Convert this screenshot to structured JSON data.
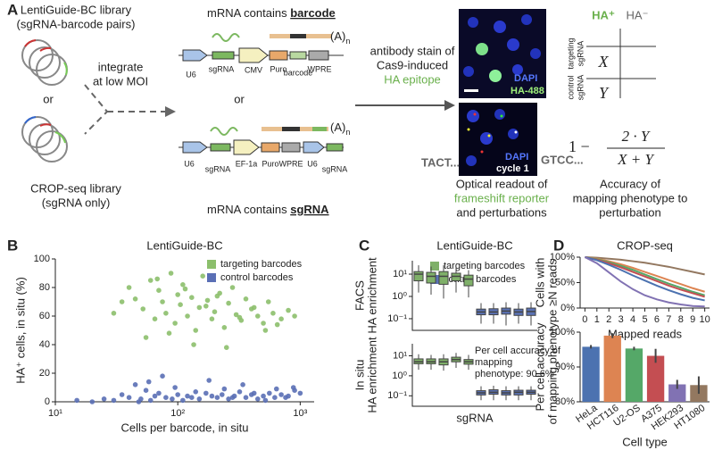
{
  "panel_a": {
    "label": "A",
    "lentiguide_library": [
      "LentiGuide-BC library",
      "(sgRNA-barcode pairs)"
    ],
    "or_left": "or",
    "cropseq_library": [
      "CROP-seq library",
      "(sgRNA only)"
    ],
    "integrate": [
      "integrate",
      "at low MOI"
    ],
    "top_construct": {
      "caption_prefix": "mRNA contains",
      "caption_key": "barcode",
      "elements": [
        "U6",
        "sgRNA",
        "CMV",
        "Puro",
        "barcode",
        "WPRE"
      ],
      "polya": "(A)",
      "polya_sub": "n"
    },
    "or_middle": "or",
    "bottom_construct": {
      "caption_prefix": "mRNA contains",
      "caption_key": "sgRNA",
      "elements": [
        "U6",
        "sgRNA",
        "EF-1a",
        "Puro",
        "WPRE",
        "U6",
        "sgRNA"
      ],
      "polya": "(A)",
      "polya_sub": "n"
    },
    "stain": [
      "antibody stain of",
      "Cas9-induced",
      "HA epitope"
    ],
    "image_top": [
      "DAPI",
      "HA-488"
    ],
    "image_bottom": [
      "DAPI",
      "cycle 1"
    ],
    "read_left": "TACT...",
    "read_right": "GTCC...",
    "readout": [
      "Optical readout of",
      "frameshift reporter",
      "and perturbations"
    ],
    "table": {
      "col_pos": "HA⁺",
      "col_neg": "HA⁻",
      "row_targeting": [
        "targeting",
        "sgRNA"
      ],
      "row_control": [
        "control",
        "sgRNA"
      ],
      "cell_x": "X",
      "cell_y": "Y"
    },
    "formula": {
      "lead": "1 −",
      "numerator": "2 · Y",
      "denominator": "X + Y"
    },
    "accuracy": [
      "Accuracy of",
      "mapping phenotype to",
      "perturbation"
    ]
  },
  "chart_data": [
    {
      "type": "scatter",
      "panel": "B",
      "title": "LentiGuide-BC",
      "xlabel": "Cells per barcode, in situ",
      "ylabel": [
        "HA⁺ cells, in situ (%)"
      ],
      "xscale": "log",
      "xlim": [
        10,
        1300
      ],
      "xticks": [
        {
          "value": 10,
          "label": "10¹"
        },
        {
          "value": 100,
          "label": "10²"
        },
        {
          "value": 1000,
          "label": "10³"
        }
      ],
      "ylim": [
        0,
        100
      ],
      "yticks": [
        0,
        20,
        40,
        60,
        80,
        100
      ],
      "legend": "upper right",
      "series": [
        {
          "name": "targeting barcodes",
          "color": "#8cbf6c",
          "x": [
            40,
            45,
            52,
            60,
            65,
            70,
            75,
            80,
            88,
            95,
            100,
            105,
            110,
            120,
            130,
            140,
            150,
            160,
            175,
            190,
            200,
            220,
            240,
            260,
            280,
            300,
            330,
            360,
            400,
            450,
            500,
            550,
            600,
            700,
            800,
            900,
            55,
            68,
            85,
            115,
            135,
            170,
            210,
            250,
            320,
            420,
            520,
            650,
            35,
            30
          ],
          "values": [
            80,
            72,
            65,
            85,
            58,
            78,
            70,
            62,
            90,
            55,
            75,
            68,
            82,
            60,
            73,
            50,
            66,
            88,
            71,
            58,
            63,
            76,
            52,
            69,
            80,
            61,
            57,
            72,
            65,
            60,
            55,
            70,
            62,
            58,
            64,
            60,
            45,
            86,
            48,
            79,
            40,
            67,
            74,
            38,
            59,
            66,
            50,
            54,
            70,
            62
          ]
        },
        {
          "name": "control barcodes",
          "color": "#5a6fb5",
          "x": [
            15,
            20,
            25,
            30,
            35,
            40,
            45,
            50,
            55,
            60,
            65,
            70,
            80,
            90,
            100,
            110,
            120,
            130,
            150,
            170,
            190,
            210,
            230,
            260,
            290,
            320,
            360,
            400,
            450,
            500,
            560,
            620,
            700,
            800,
            900,
            1000,
            75,
            95,
            140,
            180,
            240,
            280,
            340,
            420,
            520,
            640,
            760,
            880,
            58,
            48
          ],
          "values": [
            1,
            0,
            2,
            1,
            5,
            3,
            12,
            2,
            8,
            1,
            4,
            6,
            3,
            2,
            5,
            1,
            4,
            3,
            2,
            6,
            4,
            3,
            5,
            2,
            4,
            7,
            3,
            5,
            2,
            4,
            6,
            3,
            5,
            4,
            8,
            6,
            18,
            10,
            7,
            15,
            9,
            3,
            12,
            6,
            1,
            9,
            3,
            10,
            14,
            0
          ]
        }
      ]
    },
    {
      "type": "box",
      "panel": "C",
      "title": "LentiGuide-BC",
      "ylabel": [
        "FACS",
        "HA enrichment"
      ],
      "yscale": "log",
      "ylim": [
        0.03,
        40
      ],
      "yticks": [
        {
          "value": 0.1,
          "label": "10⁻¹"
        },
        {
          "value": 1,
          "label": "10⁰"
        },
        {
          "value": 10,
          "label": "10¹"
        }
      ],
      "categories": [
        null,
        null,
        null,
        null,
        null,
        null,
        null,
        null,
        null,
        null
      ],
      "legend": "upper right",
      "series": [
        {
          "name": "targeting barcodes",
          "color": "#7fb069",
          "values": [
            {
              "low": 1.5,
              "q1": 5,
              "median": 10,
              "q3": 13,
              "high": 25
            },
            {
              "low": 1.2,
              "q1": 4,
              "median": 8,
              "q3": 12,
              "high": 22
            },
            {
              "low": 0.8,
              "q1": 3.5,
              "median": 8,
              "q3": 13,
              "high": 25
            },
            {
              "low": 1.5,
              "q1": 5,
              "median": 8,
              "q3": 11,
              "high": 20
            },
            {
              "low": 0.9,
              "q1": 3,
              "median": 6,
              "q3": 9,
              "high": 15
            },
            null,
            null,
            null,
            null,
            null
          ]
        },
        {
          "name": "control barcodes",
          "color": "#5a72b5",
          "values": [
            null,
            null,
            null,
            null,
            null,
            {
              "low": 0.06,
              "q1": 0.15,
              "median": 0.2,
              "q3": 0.27,
              "high": 0.5
            },
            {
              "low": 0.06,
              "q1": 0.15,
              "median": 0.2,
              "q3": 0.28,
              "high": 0.5
            },
            {
              "low": 0.05,
              "q1": 0.16,
              "median": 0.22,
              "q3": 0.3,
              "high": 0.55
            },
            {
              "low": 0.06,
              "q1": 0.14,
              "median": 0.2,
              "q3": 0.27,
              "high": 0.5
            },
            {
              "low": 0.05,
              "q1": 0.14,
              "median": 0.21,
              "q3": 0.3,
              "high": 0.55
            }
          ]
        }
      ]
    },
    {
      "type": "box",
      "xlabel": "sgRNA",
      "ylabel": [
        "In situ",
        "HA enrichment"
      ],
      "annotation": [
        "Per cell accuracy of",
        "mapping",
        "phenotype: 90.6%"
      ],
      "yscale": "log",
      "ylim": [
        0.03,
        40
      ],
      "yticks": [
        {
          "value": 0.1,
          "label": "10⁻¹"
        },
        {
          "value": 1,
          "label": "10⁰"
        },
        {
          "value": 10,
          "label": "10¹"
        }
      ],
      "categories": [
        null,
        null,
        null,
        null,
        null,
        null,
        null,
        null,
        null,
        null
      ],
      "series": [
        {
          "color": "#7fb069",
          "values": [
            {
              "low": 2,
              "q1": 4,
              "median": 5,
              "q3": 7,
              "high": 12
            },
            {
              "low": 2,
              "q1": 4,
              "median": 5,
              "q3": 7,
              "high": 11
            },
            {
              "low": 1.8,
              "q1": 3.5,
              "median": 5,
              "q3": 7,
              "high": 12
            },
            {
              "low": 2.5,
              "q1": 5,
              "median": 6.5,
              "q3": 8.5,
              "high": 14
            },
            {
              "low": 2,
              "q1": 3.8,
              "median": 5,
              "q3": 6.5,
              "high": 11
            },
            null,
            null,
            null,
            null,
            null
          ]
        },
        {
          "color": "#5a72b5",
          "values": [
            null,
            null,
            null,
            null,
            null,
            {
              "low": 0.06,
              "q1": 0.11,
              "median": 0.14,
              "q3": 0.18,
              "high": 0.3
            },
            {
              "low": 0.06,
              "q1": 0.12,
              "median": 0.15,
              "q3": 0.2,
              "high": 0.32
            },
            {
              "low": 0.06,
              "q1": 0.11,
              "median": 0.14,
              "q3": 0.18,
              "high": 0.3
            },
            {
              "low": 0.06,
              "q1": 0.11,
              "median": 0.15,
              "q3": 0.19,
              "high": 0.3
            },
            {
              "low": 0.06,
              "q1": 0.12,
              "median": 0.15,
              "q3": 0.19,
              "high": 0.3
            }
          ]
        }
      ]
    },
    {
      "type": "line",
      "panel": "D",
      "title": "CROP-seq",
      "xlabel": "Mapped reads",
      "ylabel": [
        "Cells with",
        "≥N reads"
      ],
      "x": [
        0,
        1,
        2,
        3,
        4,
        5,
        6,
        7,
        8,
        9,
        10
      ],
      "xlim": [
        -0.4,
        10.4
      ],
      "xticks": [
        0,
        1,
        2,
        3,
        4,
        5,
        6,
        7,
        8,
        9,
        10
      ],
      "ylim": [
        0,
        100
      ],
      "yticks": [
        {
          "value": 0,
          "label": "0%"
        },
        {
          "value": 50,
          "label": "50%"
        },
        {
          "value": 100,
          "label": "100%"
        }
      ],
      "series": [
        {
          "color": "#937860",
          "values": [
            100,
            99,
            97,
            95,
            92,
            89,
            85,
            81,
            76,
            71,
            66
          ]
        },
        {
          "color": "#dd8452",
          "values": [
            100,
            97,
            92,
            86,
            79,
            71,
            63,
            55,
            47,
            39,
            32
          ]
        },
        {
          "color": "#55a868",
          "values": [
            100,
            96,
            90,
            83,
            75,
            66,
            57,
            48,
            40,
            32,
            25
          ]
        },
        {
          "color": "#c44e52",
          "values": [
            100,
            95,
            88,
            80,
            71,
            62,
            53,
            44,
            36,
            29,
            22
          ]
        },
        {
          "color": "#4c72b0",
          "values": [
            100,
            94,
            85,
            75,
            64,
            54,
            44,
            35,
            27,
            20,
            15
          ]
        },
        {
          "color": "#8172b3",
          "values": [
            100,
            88,
            70,
            52,
            37,
            25,
            17,
            11,
            7,
            4,
            3
          ]
        }
      ]
    },
    {
      "type": "bar",
      "xlabel": "Cell type",
      "ylabel": [
        "Per cell accuracy",
        "of mapping phenotype"
      ],
      "categories": [
        "HeLa",
        "HCT116",
        "U2-OS",
        "A375",
        "HEK293",
        "HT1080"
      ],
      "values": [
        95.8,
        99.0,
        95.3,
        93.2,
        85.0,
        84.8
      ],
      "errors": [
        0.5,
        0.7,
        0.5,
        2.0,
        1.3,
        2.5
      ],
      "colors": [
        "#4c72b0",
        "#dd8452",
        "#55a868",
        "#c44e52",
        "#8172b3",
        "#937860"
      ],
      "ylim": [
        80,
        100
      ],
      "yticks": [
        {
          "value": 80,
          "label": "80%"
        },
        {
          "value": 90,
          "label": "90%"
        },
        {
          "value": 100,
          "label": "100%"
        }
      ]
    }
  ]
}
